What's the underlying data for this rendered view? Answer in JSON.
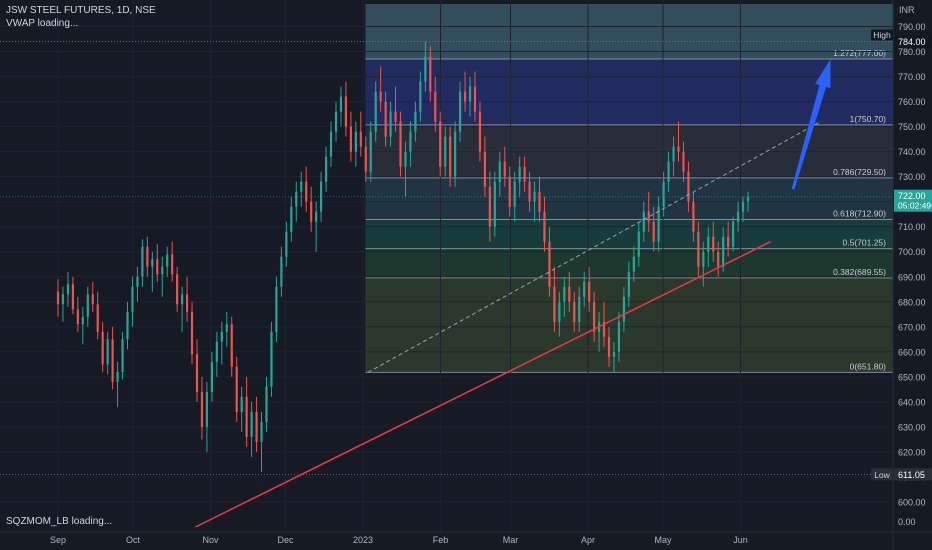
{
  "header": {
    "title": "JSW STEEL FUTURES, 1D, NSE",
    "indicator": "VWAP loading...",
    "bottom_indicator": "SQZMOM_LB loading...",
    "currency": "INR"
  },
  "chart_data": {
    "type": "candlestick",
    "symbol": "JSW STEEL FUTURES",
    "interval": "1D",
    "exchange": "NSE",
    "y_ticks": [
      790,
      780,
      770,
      760,
      750,
      740,
      730,
      720,
      710,
      700,
      690,
      680,
      670,
      660,
      650,
      640,
      630,
      620,
      610,
      600
    ],
    "ylim": [
      596,
      799
    ],
    "x_ticks": [
      {
        "label": "Sep",
        "day": 0
      },
      {
        "label": "Oct",
        "day": 30
      },
      {
        "label": "Nov",
        "day": 61
      },
      {
        "label": "Dec",
        "day": 91
      },
      {
        "label": "2023",
        "day": 122
      },
      {
        "label": "Feb",
        "day": 153
      },
      {
        "label": "Mar",
        "day": 181
      },
      {
        "label": "Apr",
        "day": 212
      },
      {
        "label": "May",
        "day": 242
      },
      {
        "label": "Jun",
        "day": 273
      }
    ],
    "last_price": "722.00",
    "countdown": "05:02:49",
    "high_label": "High",
    "high_value": "784.00",
    "low_label": "Low",
    "low_value": "611.05",
    "oscillator_zero": "0.00",
    "fib": {
      "levels": [
        {
          "label": "1.272(777.00)",
          "price": 777.0
        },
        {
          "label": "1(750.70)",
          "price": 750.7
        },
        {
          "label": "0.786(729.50)",
          "price": 729.5
        },
        {
          "label": "0.618(712.90)",
          "price": 712.9
        },
        {
          "label": "0.5(701.25)",
          "price": 701.25
        },
        {
          "label": "0.382(689.55)",
          "price": 689.55
        },
        {
          "label": "0(651.80)",
          "price": 651.8
        }
      ],
      "top_price": 799,
      "start_day": 123,
      "end_day": 364,
      "colors": [
        "#4a7a8c",
        "#2c3b92",
        "#3a3d4a",
        "#2b4a5c",
        "#1c5a4e",
        "#245438",
        "#3c5432",
        "#2f4c3a"
      ]
    },
    "trendline": {
      "color": "#f23645",
      "points": [
        [
          55,
          590
        ],
        [
          285,
          704
        ]
      ]
    },
    "diagonal": {
      "points": [
        [
          124,
          651.8
        ],
        [
          305,
          752
        ]
      ]
    },
    "arrow": {
      "color": "#2962ff",
      "from": [
        294,
        725
      ],
      "to": [
        309,
        777
      ]
    },
    "candle_colors": {
      "up": "#26a69a",
      "down": "#ef5350"
    },
    "candles": [
      [
        684,
        689,
        674,
        679
      ],
      [
        679,
        686,
        672,
        683
      ],
      [
        683,
        692,
        678,
        687
      ],
      [
        687,
        690,
        675,
        677
      ],
      [
        677,
        682,
        668,
        671
      ],
      [
        671,
        678,
        663,
        674
      ],
      [
        674,
        686,
        670,
        683
      ],
      [
        683,
        688,
        676,
        679
      ],
      [
        679,
        684,
        665,
        668
      ],
      [
        668,
        672,
        652,
        655
      ],
      [
        655,
        668,
        651,
        665
      ],
      [
        665,
        670,
        645,
        648
      ],
      [
        648,
        656,
        638,
        652
      ],
      [
        652,
        668,
        649,
        665
      ],
      [
        665,
        680,
        661,
        676
      ],
      [
        676,
        690,
        670,
        686
      ],
      [
        686,
        694,
        680,
        690
      ],
      [
        690,
        705,
        686,
        702
      ],
      [
        702,
        706,
        690,
        694
      ],
      [
        694,
        700,
        684,
        697
      ],
      [
        697,
        703,
        688,
        691
      ],
      [
        691,
        698,
        682,
        694
      ],
      [
        694,
        702,
        690,
        699
      ],
      [
        699,
        704,
        688,
        691
      ],
      [
        691,
        694,
        676,
        679
      ],
      [
        679,
        686,
        668,
        683
      ],
      [
        683,
        690,
        672,
        676
      ],
      [
        676,
        680,
        655,
        659
      ],
      [
        659,
        665,
        640,
        644
      ],
      [
        644,
        650,
        625,
        630
      ],
      [
        630,
        648,
        620,
        644
      ],
      [
        644,
        660,
        640,
        656
      ],
      [
        656,
        668,
        650,
        664
      ],
      [
        664,
        672,
        655,
        668
      ],
      [
        668,
        676,
        662,
        671
      ],
      [
        671,
        674,
        650,
        654
      ],
      [
        654,
        658,
        632,
        636
      ],
      [
        636,
        646,
        628,
        642
      ],
      [
        642,
        650,
        622,
        626
      ],
      [
        626,
        640,
        618,
        636
      ],
      [
        636,
        642,
        620,
        624
      ],
      [
        624,
        636,
        612,
        632
      ],
      [
        632,
        650,
        628,
        646
      ],
      [
        646,
        672,
        642,
        668
      ],
      [
        668,
        690,
        664,
        686
      ],
      [
        686,
        702,
        682,
        698
      ],
      [
        698,
        712,
        694,
        708
      ],
      [
        708,
        722,
        704,
        718
      ],
      [
        718,
        728,
        712,
        724
      ],
      [
        724,
        732,
        718,
        728
      ],
      [
        728,
        734,
        716,
        720
      ],
      [
        720,
        726,
        708,
        712
      ],
      [
        712,
        720,
        700,
        716
      ],
      [
        716,
        732,
        712,
        728
      ],
      [
        728,
        742,
        724,
        738
      ],
      [
        738,
        752,
        734,
        748
      ],
      [
        748,
        760,
        744,
        756
      ],
      [
        756,
        766,
        750,
        762
      ],
      [
        762,
        768,
        746,
        750
      ],
      [
        750,
        756,
        736,
        740
      ],
      [
        740,
        752,
        734,
        748
      ],
      [
        748,
        756,
        738,
        742
      ],
      [
        742,
        746,
        728,
        732
      ],
      [
        732,
        752,
        728,
        748
      ],
      [
        748,
        768,
        744,
        764
      ],
      [
        764,
        774,
        756,
        760
      ],
      [
        760,
        764,
        742,
        746
      ],
      [
        746,
        760,
        742,
        756
      ],
      [
        756,
        766,
        748,
        752
      ],
      [
        752,
        756,
        730,
        734
      ],
      [
        734,
        744,
        722,
        740
      ],
      [
        740,
        752,
        734,
        748
      ],
      [
        748,
        760,
        744,
        756
      ],
      [
        756,
        772,
        752,
        768
      ],
      [
        768,
        784,
        764,
        778
      ],
      [
        778,
        782,
        760,
        764
      ],
      [
        764,
        770,
        748,
        752
      ],
      [
        752,
        756,
        730,
        734
      ],
      [
        734,
        750,
        730,
        746
      ],
      [
        746,
        750,
        726,
        730
      ],
      [
        730,
        752,
        726,
        748
      ],
      [
        748,
        768,
        744,
        764
      ],
      [
        764,
        772,
        756,
        760
      ],
      [
        760,
        770,
        754,
        766
      ],
      [
        766,
        772,
        752,
        756
      ],
      [
        756,
        760,
        736,
        740
      ],
      [
        740,
        746,
        722,
        726
      ],
      [
        726,
        732,
        704,
        710
      ],
      [
        710,
        732,
        706,
        728
      ],
      [
        728,
        740,
        722,
        736
      ],
      [
        736,
        742,
        726,
        730
      ],
      [
        730,
        734,
        714,
        718
      ],
      [
        718,
        732,
        712,
        728
      ],
      [
        728,
        738,
        722,
        734
      ],
      [
        734,
        738,
        724,
        728
      ],
      [
        728,
        732,
        716,
        720
      ],
      [
        720,
        728,
        712,
        724
      ],
      [
        724,
        730,
        712,
        716
      ],
      [
        716,
        722,
        700,
        704
      ],
      [
        704,
        710,
        682,
        686
      ],
      [
        686,
        694,
        668,
        672
      ],
      [
        672,
        684,
        666,
        680
      ],
      [
        680,
        690,
        674,
        686
      ],
      [
        686,
        692,
        676,
        680
      ],
      [
        680,
        684,
        668,
        672
      ],
      [
        672,
        686,
        668,
        682
      ],
      [
        682,
        692,
        678,
        688
      ],
      [
        688,
        694,
        676,
        680
      ],
      [
        680,
        684,
        664,
        668
      ],
      [
        668,
        676,
        660,
        672
      ],
      [
        672,
        680,
        662,
        666
      ],
      [
        666,
        670,
        654,
        658
      ],
      [
        658,
        664,
        652,
        660
      ],
      [
        660,
        676,
        656,
        672
      ],
      [
        672,
        686,
        668,
        682
      ],
      [
        682,
        696,
        678,
        692
      ],
      [
        692,
        702,
        688,
        698
      ],
      [
        698,
        712,
        694,
        708
      ],
      [
        708,
        720,
        704,
        716
      ],
      [
        716,
        724,
        708,
        712
      ],
      [
        712,
        718,
        700,
        704
      ],
      [
        704,
        722,
        700,
        718
      ],
      [
        718,
        732,
        714,
        728
      ],
      [
        728,
        740,
        724,
        736
      ],
      [
        736,
        746,
        730,
        742
      ],
      [
        742,
        752,
        736,
        740
      ],
      [
        740,
        744,
        728,
        732
      ],
      [
        732,
        736,
        716,
        720
      ],
      [
        720,
        724,
        704,
        708
      ],
      [
        708,
        712,
        690,
        694
      ],
      [
        694,
        704,
        686,
        700
      ],
      [
        700,
        710,
        694,
        706
      ],
      [
        706,
        712,
        696,
        700
      ],
      [
        700,
        704,
        690,
        694
      ],
      [
        694,
        710,
        692,
        706
      ],
      [
        706,
        712,
        698,
        702
      ],
      [
        702,
        714,
        700,
        712
      ],
      [
        712,
        720,
        708,
        716
      ],
      [
        716,
        722,
        712,
        720
      ],
      [
        720,
        724,
        716,
        722
      ]
    ]
  }
}
